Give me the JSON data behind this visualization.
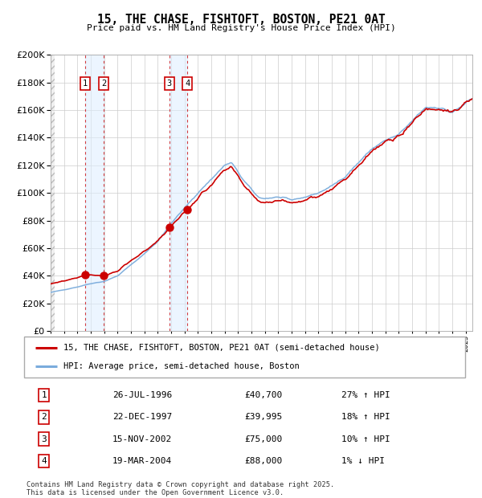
{
  "title": "15, THE CHASE, FISHTOFT, BOSTON, PE21 0AT",
  "subtitle": "Price paid vs. HM Land Registry's House Price Index (HPI)",
  "legend_property": "15, THE CHASE, FISHTOFT, BOSTON, PE21 0AT (semi-detached house)",
  "legend_hpi": "HPI: Average price, semi-detached house, Boston",
  "property_color": "#cc0000",
  "hpi_color": "#7aacdc",
  "transactions": [
    {
      "num": 1,
      "date": "26-JUL-1996",
      "price": 40700,
      "hpi_diff": "27% ↑ HPI",
      "x_year": 1996.57
    },
    {
      "num": 2,
      "date": "22-DEC-1997",
      "price": 39995,
      "hpi_diff": "18% ↑ HPI",
      "x_year": 1997.97
    },
    {
      "num": 3,
      "date": "15-NOV-2002",
      "price": 75000,
      "hpi_diff": "10% ↑ HPI",
      "x_year": 2002.87
    },
    {
      "num": 4,
      "date": "19-MAR-2004",
      "price": 88000,
      "hpi_diff": "1% ↓ HPI",
      "x_year": 2004.21
    }
  ],
  "xlim": [
    1994.0,
    2025.5
  ],
  "ylim": [
    0,
    200000
  ],
  "yticks": [
    0,
    20000,
    40000,
    60000,
    80000,
    100000,
    120000,
    140000,
    160000,
    180000,
    200000
  ],
  "footer": "Contains HM Land Registry data © Crown copyright and database right 2025.\nThis data is licensed under the Open Government Licence v3.0.",
  "background_color": "#ffffff",
  "grid_color": "#cccccc"
}
